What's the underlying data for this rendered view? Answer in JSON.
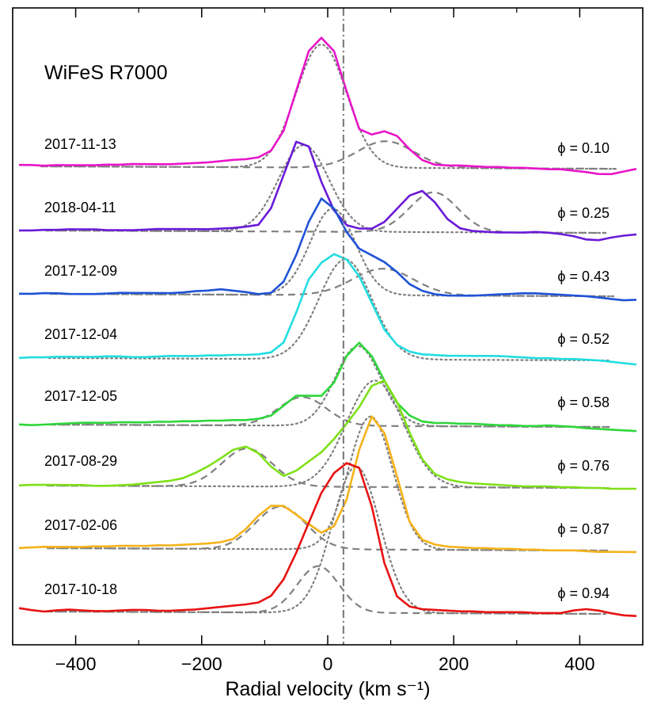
{
  "chart_data": {
    "type": "line",
    "title": "WiFeS R7000",
    "xlabel": "Radial velocity (km s⁻¹)",
    "ylabel": "",
    "xlim": [
      -500,
      500
    ],
    "xticks": [
      -400,
      -200,
      0,
      200,
      400
    ],
    "xticklabels": [
      "−400",
      "−200",
      "0",
      "200",
      "400"
    ],
    "reference_velocity": 25,
    "x": [
      -490,
      -470,
      -450,
      -430,
      -410,
      -390,
      -370,
      -350,
      -330,
      -310,
      -290,
      -270,
      -250,
      -230,
      -210,
      -190,
      -170,
      -150,
      -130,
      -110,
      -90,
      -70,
      -50,
      -30,
      -10,
      10,
      30,
      50,
      70,
      90,
      110,
      130,
      150,
      170,
      190,
      210,
      230,
      250,
      270,
      290,
      310,
      330,
      350,
      370,
      390,
      410,
      430,
      450,
      470,
      490
    ],
    "series": [
      {
        "name": "2017-11-13",
        "date": "2017-11-13",
        "phase_label": "ϕ = 0.10",
        "color": "#e815c8",
        "values": [
          0.02,
          0.02,
          0.01,
          0.02,
          0.02,
          0.02,
          0.02,
          0.03,
          0.03,
          0.04,
          0.04,
          0.04,
          0.04,
          0.05,
          0.06,
          0.07,
          0.09,
          0.11,
          0.12,
          0.15,
          0.25,
          0.55,
          1.15,
          1.75,
          1.95,
          1.75,
          1.15,
          0.58,
          0.5,
          0.55,
          0.48,
          0.28,
          0.12,
          0.05,
          0.04,
          0.04,
          0.03,
          0.02,
          0.02,
          0.01,
          0.01,
          0.0,
          -0.01,
          -0.01,
          -0.03,
          -0.05,
          -0.08,
          -0.08,
          -0.04,
          0.0
        ],
        "components": [
          {
            "shape": "gaussian",
            "style": "dotted",
            "amplitude": 1.85,
            "center": -10,
            "sigma": 40
          },
          {
            "shape": "gaussian",
            "style": "dashed",
            "amplitude": 0.4,
            "center": 92,
            "sigma": 45
          }
        ]
      },
      {
        "name": "2018-04-11",
        "date": "2018-04-11",
        "phase_label": "ϕ = 0.25",
        "color": "#6a1ad8",
        "values": [
          0.0,
          0.0,
          0.01,
          0.01,
          0.02,
          0.02,
          0.02,
          0.01,
          0.01,
          0.01,
          0.02,
          0.03,
          0.03,
          0.03,
          0.03,
          0.03,
          0.04,
          0.05,
          0.07,
          0.1,
          0.35,
          0.85,
          1.35,
          1.28,
          0.75,
          0.32,
          0.1,
          0.05,
          0.05,
          0.15,
          0.35,
          0.55,
          0.62,
          0.45,
          0.2,
          0.06,
          0.02,
          0.01,
          0.0,
          0.0,
          0.0,
          0.01,
          0.0,
          -0.02,
          -0.05,
          -0.1,
          -0.11,
          -0.07,
          -0.04,
          -0.02
        ],
        "components": [
          {
            "shape": "gaussian",
            "style": "dotted",
            "amplitude": 1.3,
            "center": -38,
            "sigma": 40
          },
          {
            "shape": "gaussian",
            "style": "dashed",
            "amplitude": 0.6,
            "center": 168,
            "sigma": 38
          }
        ]
      },
      {
        "name": "2017-12-09",
        "date": "2017-12-09",
        "phase_label": "ϕ = 0.43",
        "color": "#1f52d6",
        "values": [
          0.0,
          0.0,
          0.01,
          0.01,
          0.0,
          0.0,
          0.0,
          0.01,
          0.02,
          0.02,
          0.02,
          0.02,
          0.02,
          0.03,
          0.05,
          0.06,
          0.08,
          0.06,
          0.04,
          0.01,
          0.03,
          0.2,
          0.6,
          1.1,
          1.45,
          1.3,
          0.95,
          0.7,
          0.6,
          0.5,
          0.35,
          0.17,
          0.07,
          0.02,
          0.0,
          0.0,
          0.0,
          0.01,
          0.02,
          0.03,
          0.04,
          0.04,
          0.03,
          0.02,
          0.01,
          0.0,
          -0.02,
          -0.04,
          -0.06,
          -0.05
        ],
        "components": [
          {
            "shape": "gaussian",
            "style": "dotted",
            "amplitude": 1.3,
            "center": 8,
            "sigma": 36
          },
          {
            "shape": "gaussian",
            "style": "dashed",
            "amplitude": 0.4,
            "center": 88,
            "sigma": 48
          }
        ]
      },
      {
        "name": "2017-12-04",
        "date": "2017-12-04",
        "phase_label": "ϕ = 0.52",
        "color": "#22dde0",
        "values": [
          0.0,
          0.01,
          0.01,
          0.02,
          0.02,
          0.02,
          0.02,
          0.03,
          0.03,
          0.02,
          0.02,
          0.03,
          0.04,
          0.04,
          0.04,
          0.05,
          0.05,
          0.06,
          0.06,
          0.07,
          0.1,
          0.25,
          0.7,
          1.2,
          1.45,
          1.58,
          1.5,
          1.25,
          0.85,
          0.45,
          0.22,
          0.12,
          0.08,
          0.07,
          0.06,
          0.06,
          0.06,
          0.06,
          0.06,
          0.05,
          0.04,
          0.03,
          0.03,
          0.02,
          0.02,
          0.01,
          0.0,
          -0.02,
          -0.04,
          -0.06
        ],
        "components": [
          {
            "shape": "gaussian",
            "style": "dotted",
            "amplitude": 1.5,
            "center": 28,
            "sigma": 42
          }
        ]
      },
      {
        "name": "2017-12-05",
        "date": "2017-12-05",
        "phase_label": "ϕ = 0.58",
        "color": "#2ed63a",
        "values": [
          0.0,
          -0.01,
          0.0,
          0.01,
          0.02,
          0.03,
          0.03,
          0.03,
          0.04,
          0.04,
          0.04,
          0.05,
          0.05,
          0.06,
          0.06,
          0.07,
          0.07,
          0.08,
          0.08,
          0.1,
          0.15,
          0.3,
          0.45,
          0.45,
          0.45,
          0.65,
          1.05,
          1.25,
          1.05,
          0.68,
          0.35,
          0.16,
          0.07,
          0.05,
          0.05,
          0.04,
          0.04,
          0.03,
          0.02,
          0.02,
          0.01,
          0.01,
          0.02,
          0.01,
          0.0,
          -0.02,
          -0.03,
          -0.04,
          -0.05,
          -0.06
        ],
        "components": [
          {
            "shape": "gaussian",
            "style": "dotted",
            "amplitude": 1.2,
            "center": 48,
            "sigma": 36
          },
          {
            "shape": "gaussian",
            "style": "dashed",
            "amplitude": 0.43,
            "center": -40,
            "sigma": 38
          }
        ]
      },
      {
        "name": "2017-08-29",
        "date": "2017-08-29",
        "phase_label": "ϕ = 0.76",
        "color": "#7ee018",
        "values": [
          0.0,
          0.01,
          0.01,
          0.01,
          0.01,
          0.01,
          0.0,
          0.0,
          0.01,
          0.02,
          0.04,
          0.06,
          0.08,
          0.12,
          0.2,
          0.3,
          0.42,
          0.55,
          0.6,
          0.5,
          0.3,
          0.16,
          0.24,
          0.38,
          0.52,
          0.72,
          0.95,
          1.2,
          1.52,
          1.6,
          1.28,
          0.82,
          0.42,
          0.2,
          0.12,
          0.08,
          0.06,
          0.05,
          0.04,
          0.03,
          0.02,
          0.02,
          0.02,
          0.01,
          0.01,
          0.0,
          0.0,
          -0.01,
          -0.01,
          -0.01
        ],
        "components": [
          {
            "shape": "gaussian",
            "style": "dotted",
            "amplitude": 1.6,
            "center": 75,
            "sigma": 45
          },
          {
            "shape": "gaussian",
            "style": "dashed",
            "amplitude": 0.57,
            "center": -128,
            "sigma": 40
          }
        ]
      },
      {
        "name": "2017-02-06",
        "date": "2017-02-06",
        "phase_label": "ϕ = 0.87",
        "color": "#f5b21a",
        "values": [
          0.0,
          0.01,
          0.02,
          0.02,
          0.02,
          0.02,
          0.03,
          0.03,
          0.04,
          0.04,
          0.04,
          0.05,
          0.05,
          0.06,
          0.07,
          0.08,
          0.1,
          0.15,
          0.3,
          0.5,
          0.65,
          0.65,
          0.52,
          0.38,
          0.25,
          0.35,
          0.75,
          1.5,
          2.0,
          1.75,
          1.1,
          0.42,
          0.15,
          0.08,
          0.05,
          0.04,
          0.03,
          0.03,
          0.02,
          0.02,
          0.01,
          0.01,
          0.0,
          0.0,
          0.0,
          -0.01,
          -0.02,
          -0.02,
          -0.02,
          -0.02
        ],
        "components": [
          {
            "shape": "gaussian",
            "style": "dotted",
            "amplitude": 2.0,
            "center": 68,
            "sigma": 35
          },
          {
            "shape": "gaussian",
            "style": "dashed",
            "amplitude": 0.64,
            "center": -75,
            "sigma": 40
          }
        ]
      },
      {
        "name": "2017-10-18",
        "date": "2017-10-18",
        "phase_label": "ϕ = 0.94",
        "color": "#e81212",
        "values": [
          0.05,
          0.02,
          0.0,
          0.02,
          0.03,
          0.02,
          0.01,
          0.01,
          0.02,
          0.03,
          0.03,
          0.02,
          0.02,
          0.03,
          0.04,
          0.06,
          0.08,
          0.1,
          0.12,
          0.15,
          0.25,
          0.5,
          0.9,
          1.35,
          1.8,
          2.1,
          2.25,
          2.18,
          1.6,
          0.75,
          0.25,
          0.1,
          0.06,
          0.05,
          0.04,
          0.03,
          0.03,
          0.02,
          0.02,
          0.02,
          0.02,
          0.01,
          0.01,
          0.01,
          0.05,
          0.07,
          0.05,
          0.01,
          -0.02,
          -0.03
        ],
        "components": [
          {
            "shape": "gaussian",
            "style": "dotted",
            "amplitude": 2.2,
            "center": 45,
            "sigma": 38
          },
          {
            "shape": "gaussian",
            "style": "dashed",
            "amplitude": 0.7,
            "center": -15,
            "sigma": 33
          }
        ]
      }
    ]
  }
}
